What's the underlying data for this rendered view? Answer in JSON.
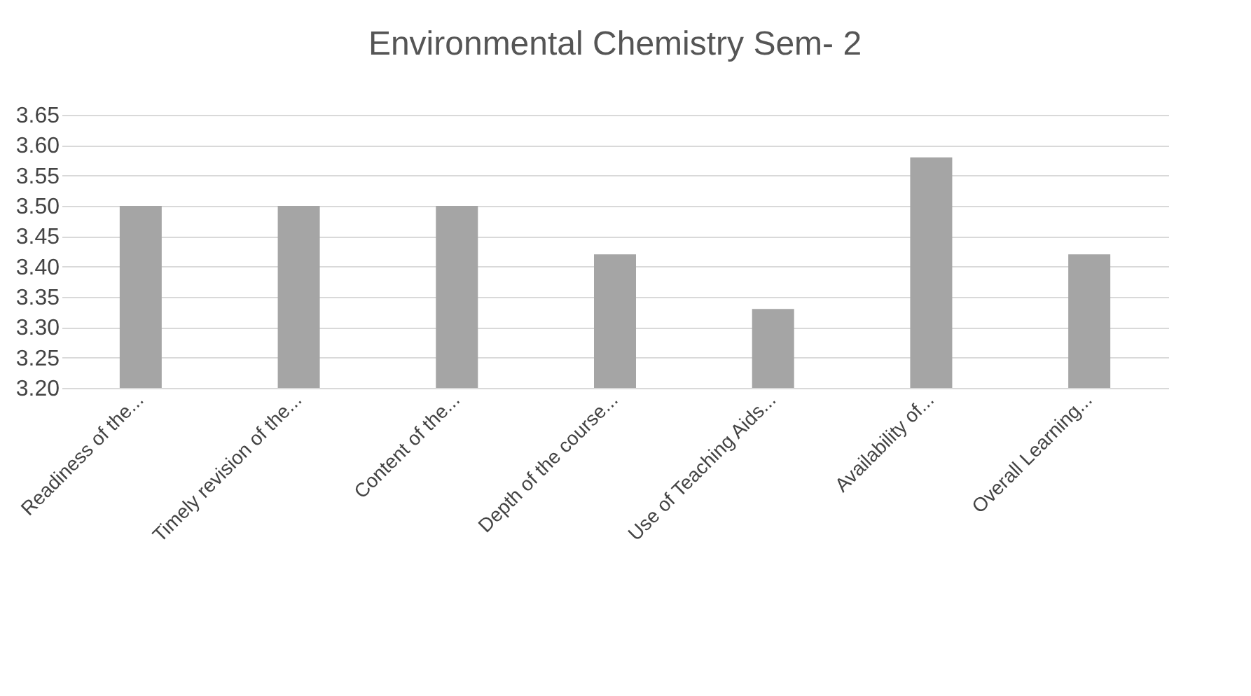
{
  "chart_data": {
    "type": "bar",
    "title": "Environmental Chemistry  Sem- 2",
    "categories": [
      "Readiness of the...",
      "Timely revision of the...",
      "Content of the...",
      "Depth of the course...",
      "Use of Teaching Aids...",
      "Availability of...",
      "Overall Learning..."
    ],
    "values": [
      3.5,
      3.5,
      3.5,
      3.42,
      3.33,
      3.58,
      3.42
    ],
    "color": "#a5a5a5",
    "ylim": [
      3.2,
      3.65
    ],
    "yticks": [
      {
        "value": 3.2,
        "label": "3.20"
      },
      {
        "value": 3.25,
        "label": "3.25"
      },
      {
        "value": 3.3,
        "label": "3.30"
      },
      {
        "value": 3.35,
        "label": "3.35"
      },
      {
        "value": 3.4,
        "label": "3.40"
      },
      {
        "value": 3.45,
        "label": "3.45"
      },
      {
        "value": 3.5,
        "label": "3.50"
      },
      {
        "value": 3.55,
        "label": "3.55"
      },
      {
        "value": 3.6,
        "label": "3.60"
      },
      {
        "value": 3.65,
        "label": "3.65"
      }
    ],
    "grid": true
  }
}
